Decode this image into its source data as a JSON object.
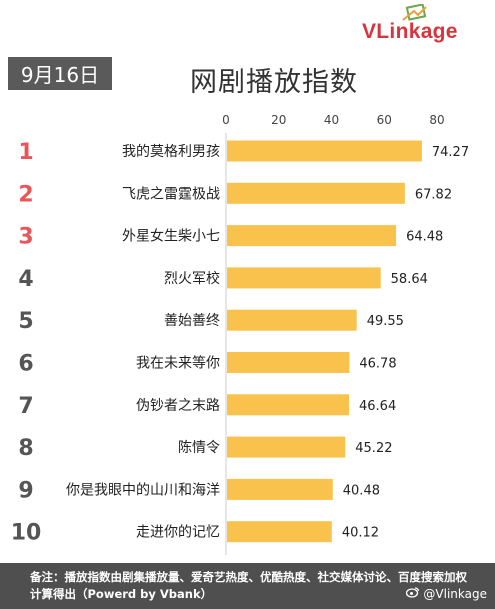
{
  "brand": {
    "name_prefix": "VLink",
    "name_suffix": "age"
  },
  "date_label": "9月16日",
  "chart_data": {
    "type": "bar",
    "orientation": "horizontal",
    "title": "网剧播放指数",
    "ranks": [
      "1",
      "2",
      "3",
      "4",
      "5",
      "6",
      "7",
      "8",
      "9",
      "10"
    ],
    "categories": [
      "我的莫格利男孩",
      "飞虎之雷霆极战",
      "外星女生柴小七",
      "烈火军校",
      "善始善终",
      "我在未来等你",
      "伪钞者之末路",
      "陈情令",
      "你是我眼中的山川和海洋",
      "走进你的记忆"
    ],
    "values": [
      74.27,
      67.82,
      64.48,
      58.64,
      49.55,
      46.78,
      46.64,
      45.22,
      40.48,
      40.12
    ],
    "value_labels": [
      "74.27",
      "67.82",
      "64.48",
      "58.64",
      "49.55",
      "46.78",
      "46.64",
      "45.22",
      "40.48",
      "40.12"
    ],
    "xlim": [
      0,
      80
    ],
    "x_ticks": [
      "0",
      "20",
      "40",
      "60",
      "80"
    ],
    "x_axis_position": "top",
    "grid": false,
    "colors": {
      "bar": "#f9c24d",
      "rank_top3": "#e8565a",
      "rank_other": "#555555"
    }
  },
  "footer": {
    "note": "备注：播放指数由剧集播放量、爱奇艺热度、优酷热度、社交媒体讨论、百度搜索加权计算得出（Powerd by Vbank）",
    "watermark": "@Vlinkage",
    "watermark_icon": "weibo-icon"
  }
}
